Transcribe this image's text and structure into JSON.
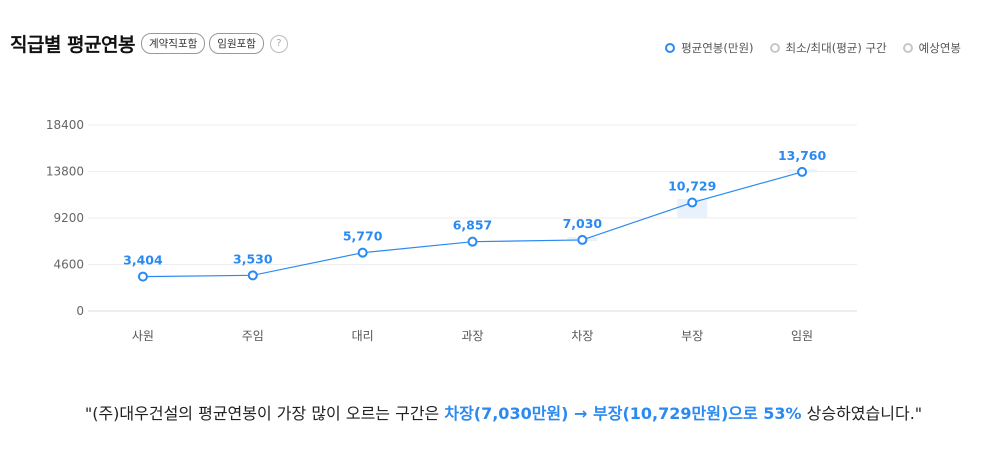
{
  "header": {
    "title": "직급별 평균연봉",
    "tags": [
      "계약직포함",
      "임원포함"
    ],
    "help_symbol": "?"
  },
  "legend": {
    "items": [
      "평균연봉(만원)",
      "최소/최대(평균) 구간",
      "예상연봉"
    ]
  },
  "colors": {
    "accent": "#2b8af0",
    "band": "#e9f2fc",
    "grid": "#eeeeee",
    "legend_inactive": "#c7c7c7"
  },
  "chart_data": {
    "type": "line",
    "categories": [
      "사원",
      "주임",
      "대리",
      "과장",
      "차장",
      "부장",
      "임원"
    ],
    "series": [
      {
        "name": "평균연봉(만원)",
        "values": [
          3404,
          3530,
          5770,
          6857,
          7030,
          10729,
          13760
        ],
        "labels": [
          "3,404",
          "3,530",
          "5,770",
          "6,857",
          "7,030",
          "10,729",
          "13,760"
        ]
      }
    ],
    "range_bands": [
      {
        "category": "차장",
        "min": 6900,
        "max": 7300
      },
      {
        "category": "부장",
        "min": 9200,
        "max": 11100
      },
      {
        "category": "임원",
        "min": 13700,
        "max": 14000
      }
    ],
    "yticks": [
      0,
      4600,
      9200,
      13800,
      18400
    ],
    "ylim": [
      0,
      18400
    ],
    "grid": true,
    "legend_position": "top-right"
  },
  "footer": {
    "prefix": "\"(주)대우건설의 평균연봉이 가장 많이 오르는 구간은 ",
    "highlight": "차장(7,030만원) → 부장(10,729만원)으로 53%",
    "suffix": " 상승하였습니다.\""
  }
}
